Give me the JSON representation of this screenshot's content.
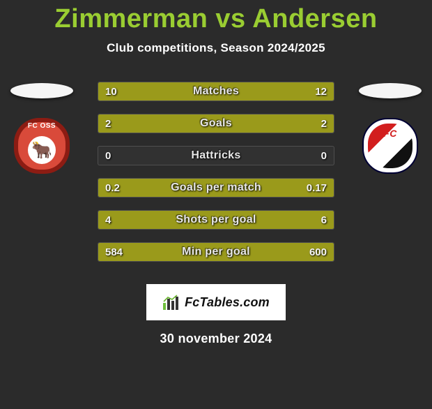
{
  "title": "Zimmerman vs Andersen",
  "title_color": "#9acd32",
  "subtitle": "Club competitions, Season 2024/2025",
  "background_color": "#2b2b2b",
  "bar_track_border": "rgba(255,255,255,0.15)",
  "fill_color": "#9a9a1b",
  "teams": {
    "left": {
      "oval_fill": "#f5f5f5",
      "crest_bg": "#8c1c13",
      "crest_inner": "#d94a3a",
      "crest_text": "FC OSS",
      "crest_text_color": "#ffffff",
      "crest_icon": "🐂",
      "crest_icon_bg": "#ffffff"
    },
    "right": {
      "oval_fill": "#f5f5f5",
      "crest_bg": "#ffffff",
      "crest_inner": "#ffffff",
      "crest_text": "FC",
      "crest_text_color": "#d21e1e",
      "crest_icon": "",
      "stripes": [
        "#d21e1e",
        "#ffffff",
        "#111111"
      ]
    }
  },
  "stats": [
    {
      "label": "Matches",
      "left_text": "10",
      "right_text": "12",
      "left_pct": 45,
      "right_pct": 55
    },
    {
      "label": "Goals",
      "left_text": "2",
      "right_text": "2",
      "left_pct": 50,
      "right_pct": 50
    },
    {
      "label": "Hattricks",
      "left_text": "0",
      "right_text": "0",
      "left_pct": 0,
      "right_pct": 0
    },
    {
      "label": "Goals per match",
      "left_text": "0.2",
      "right_text": "0.17",
      "left_pct": 54,
      "right_pct": 46
    },
    {
      "label": "Shots per goal",
      "left_text": "4",
      "right_text": "6",
      "left_pct": 40,
      "right_pct": 60
    },
    {
      "label": "Min per goal",
      "left_text": "584",
      "right_text": "600",
      "left_pct": 49,
      "right_pct": 51
    }
  ],
  "branding": {
    "logo_text": "FcTables.com",
    "panel_bg": "#ffffff",
    "icon_colors": [
      "#6fbf3b",
      "#333333",
      "#333333",
      "#333333"
    ]
  },
  "date": "30 november 2024"
}
